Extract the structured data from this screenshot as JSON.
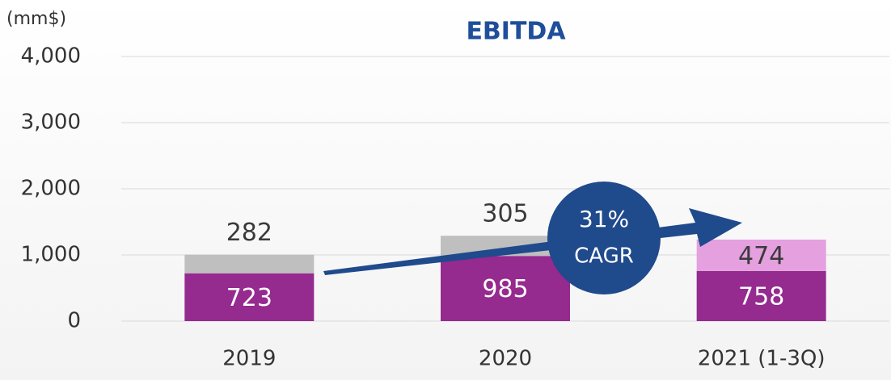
{
  "chart_data": {
    "type": "stacked_bar",
    "title": "EBITDA",
    "unit_label": "(mm$)",
    "categories": [
      "2019",
      "2020",
      "2021 (1-3Q)"
    ],
    "series": [
      {
        "color": "#952a8f",
        "label_color": "#ffffff",
        "values": [
          723,
          985,
          758
        ]
      },
      {
        "colors": [
          "#bfbfbf",
          "#bfbfbf",
          "#e4a0df"
        ],
        "label_color": "#3a3a3a",
        "values": [
          282,
          305,
          474
        ]
      }
    ],
    "ylim": [
      0,
      4000
    ],
    "yticks": [
      {
        "value": 0,
        "label": "0"
      },
      {
        "value": 1000,
        "label": "1,000"
      },
      {
        "value": 2000,
        "label": "2,000"
      },
      {
        "value": 3000,
        "label": "3,000"
      },
      {
        "value": 4000,
        "label": "4,000"
      }
    ],
    "grid": true,
    "annotations": [
      "31%",
      "CAGR"
    ]
  }
}
